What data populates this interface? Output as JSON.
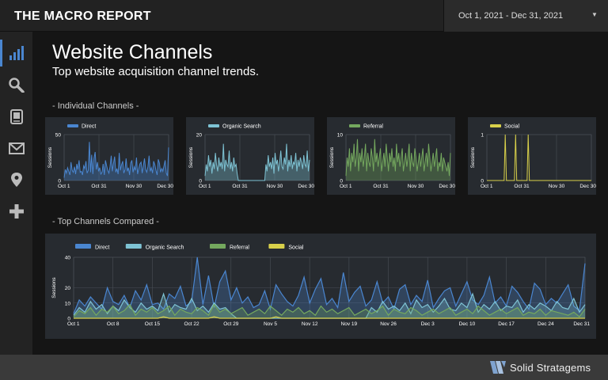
{
  "header": {
    "title": "THE MACRO REPORT"
  },
  "date_range": {
    "label": "Oct 1, 2021 - Dec 31, 2021",
    "caret": "▼"
  },
  "sidebar": {
    "items": [
      {
        "icon": "bar-chart-icon",
        "active": true
      },
      {
        "icon": "search-icon",
        "active": false
      },
      {
        "icon": "document-icon",
        "active": false
      },
      {
        "icon": "mail-icon",
        "active": false
      },
      {
        "icon": "location-pin-icon",
        "active": false
      },
      {
        "icon": "plus-icon",
        "active": false
      }
    ]
  },
  "page": {
    "title": "Website Channels",
    "subtitle": "Top website acquisition channel trends.",
    "section_individual": "- Individual Channels -",
    "section_compared": "- Top Channels Compared -"
  },
  "colors": {
    "direct": "#4a86d0",
    "organic_search": "#7ec3d4",
    "referral": "#74a85e",
    "social": "#d8d04a",
    "card_bg": "#272b30",
    "grid": "#4a4f56"
  },
  "chart_data": [
    {
      "type": "area",
      "series": [
        {
          "name": "Direct",
          "values": [
            3,
            12,
            8,
            14,
            10,
            6,
            20,
            11,
            9,
            15,
            7,
            18,
            12,
            22,
            9,
            10,
            6,
            16,
            13,
            21,
            8,
            11,
            42,
            9,
            28,
            7,
            24,
            31,
            12,
            20,
            10,
            14,
            7,
            9,
            18,
            6,
            22,
            16,
            11,
            8,
            15,
            27,
            10,
            19,
            26,
            9,
            13,
            7,
            30,
            11,
            17,
            21,
            8,
            12,
            24,
            10,
            14,
            6,
            19,
            22,
            9,
            15,
            11,
            25,
            7,
            13,
            18,
            20,
            8,
            16,
            24,
            12,
            9,
            15,
            27,
            10,
            14,
            8,
            21,
            17,
            11,
            6,
            23,
            19,
            9,
            13,
            10,
            16,
            22,
            8,
            5,
            36
          ]
        }
      ],
      "x_ticks": [
        "Oct 1",
        "Oct 31",
        "Nov 30",
        "Dec 30"
      ],
      "y_ticks": [
        "50",
        "0"
      ],
      "ylabel": "Sessions",
      "ylim": [
        0,
        50
      ]
    },
    {
      "type": "area",
      "series": [
        {
          "name": "Organic Search",
          "values": [
            2,
            7,
            4,
            11,
            6,
            9,
            3,
            8,
            5,
            12,
            7,
            4,
            10,
            6,
            8,
            5,
            16,
            4,
            9,
            7,
            6,
            13,
            5,
            8,
            4,
            10,
            6,
            7,
            3,
            0,
            0,
            0,
            0,
            0,
            0,
            0,
            0,
            0,
            0,
            0,
            0,
            0,
            0,
            0,
            0,
            0,
            0,
            0,
            0,
            0,
            0,
            0,
            0,
            7,
            4,
            11,
            6,
            8,
            5,
            10,
            3,
            12,
            7,
            9,
            4,
            8,
            13,
            6,
            5,
            10,
            7,
            16,
            4,
            9,
            6,
            11,
            5,
            8,
            7,
            12,
            4,
            9,
            6,
            10,
            8,
            5,
            11,
            7,
            6,
            13,
            4,
            9
          ]
        }
      ],
      "x_ticks": [
        "Oct 1",
        "Oct 31",
        "Nov 30",
        "Dec 30"
      ],
      "y_ticks": [
        "20",
        "0"
      ],
      "ylabel": "Sessions",
      "ylim": [
        0,
        20
      ]
    },
    {
      "type": "area",
      "series": [
        {
          "name": "Referral",
          "values": [
            1,
            5,
            3,
            7,
            2,
            6,
            4,
            8,
            3,
            5,
            9,
            2,
            6,
            4,
            7,
            3,
            5,
            8,
            2,
            6,
            4,
            3,
            7,
            5,
            2,
            9,
            4,
            6,
            3,
            5,
            7,
            2,
            4,
            6,
            3,
            8,
            5,
            2,
            6,
            4,
            7,
            3,
            5,
            2,
            8,
            4,
            6,
            3,
            5,
            7,
            2,
            4,
            6,
            3,
            5,
            8,
            2,
            6,
            4,
            3,
            7,
            5,
            2,
            4,
            6,
            3,
            5,
            7,
            2,
            4,
            6,
            3,
            8,
            5,
            2,
            4,
            6,
            3,
            5,
            7,
            2,
            4,
            3,
            6,
            2,
            5,
            4,
            3,
            2,
            4,
            1,
            6
          ]
        }
      ],
      "x_ticks": [
        "Oct 1",
        "Oct 31",
        "Nov 30",
        "Dec 30"
      ],
      "y_ticks": [
        "10",
        "0"
      ],
      "ylabel": "Sessions",
      "ylim": [
        0,
        10
      ]
    },
    {
      "type": "line",
      "series": [
        {
          "name": "Social",
          "values": [
            0,
            0,
            0,
            0,
            0,
            0,
            0,
            0,
            0,
            0,
            0,
            0,
            0,
            0,
            0,
            0,
            1,
            0,
            0,
            0,
            0,
            0,
            0,
            0,
            0,
            1,
            0,
            0,
            0,
            0,
            0,
            0,
            0,
            0,
            0,
            0,
            1,
            0,
            0,
            0,
            0,
            0,
            0,
            0,
            0,
            0,
            0,
            0,
            0,
            0,
            0,
            0,
            0,
            0,
            0,
            0,
            0,
            0,
            0,
            0,
            0,
            0,
            0,
            0,
            0,
            0,
            0,
            0,
            0,
            0,
            0,
            0,
            0,
            0,
            0,
            0,
            0,
            0,
            0,
            0,
            0,
            0,
            0,
            0,
            0,
            0,
            0,
            0,
            0,
            0,
            0,
            0
          ]
        }
      ],
      "x_ticks": [
        "Oct 1",
        "Oct 31",
        "Nov 30",
        "Dec 30"
      ],
      "y_ticks": [
        "1",
        "0"
      ],
      "ylabel": "Sessions",
      "ylim": [
        0,
        1
      ]
    },
    {
      "type": "area",
      "series": [
        {
          "name": "Direct",
          "values": [
            3,
            12,
            8,
            14,
            10,
            6,
            20,
            11,
            9,
            15,
            7,
            18,
            12,
            22,
            9,
            10,
            6,
            16,
            13,
            21,
            8,
            11,
            42,
            9,
            28,
            7,
            24,
            31,
            12,
            20,
            10,
            14,
            7,
            9,
            18,
            6,
            22,
            16,
            11,
            8,
            15,
            27,
            10,
            19,
            26,
            9,
            13,
            7,
            30,
            11,
            17,
            21,
            8,
            12,
            24,
            10,
            14,
            6,
            19,
            22,
            9,
            15,
            11,
            25,
            7,
            13,
            18,
            20,
            8,
            16,
            24,
            12,
            9,
            15,
            27,
            10,
            14,
            8,
            21,
            17,
            11,
            6,
            23,
            19,
            9,
            13,
            10,
            16,
            22,
            8,
            5,
            36
          ]
        },
        {
          "name": "Organic Search",
          "values": [
            2,
            7,
            4,
            11,
            6,
            9,
            3,
            8,
            5,
            12,
            7,
            4,
            10,
            6,
            8,
            5,
            16,
            4,
            9,
            7,
            6,
            13,
            5,
            8,
            4,
            10,
            6,
            7,
            3,
            0,
            0,
            0,
            0,
            0,
            0,
            0,
            0,
            0,
            0,
            0,
            0,
            0,
            0,
            0,
            0,
            0,
            0,
            0,
            0,
            0,
            0,
            0,
            0,
            7,
            4,
            11,
            6,
            8,
            5,
            10,
            3,
            12,
            7,
            9,
            4,
            8,
            13,
            6,
            5,
            10,
            7,
            16,
            4,
            9,
            6,
            11,
            5,
            8,
            7,
            12,
            4,
            9,
            6,
            10,
            8,
            5,
            11,
            7,
            6,
            13,
            4,
            9
          ]
        },
        {
          "name": "Referral",
          "values": [
            1,
            5,
            3,
            7,
            2,
            6,
            4,
            8,
            3,
            5,
            9,
            2,
            6,
            4,
            7,
            3,
            5,
            8,
            2,
            6,
            4,
            3,
            7,
            5,
            2,
            9,
            4,
            6,
            3,
            5,
            7,
            2,
            4,
            6,
            3,
            8,
            5,
            2,
            6,
            4,
            7,
            3,
            5,
            2,
            8,
            4,
            6,
            3,
            5,
            7,
            2,
            4,
            6,
            3,
            5,
            8,
            2,
            6,
            4,
            3,
            7,
            5,
            2,
            4,
            6,
            3,
            5,
            7,
            2,
            4,
            6,
            3,
            8,
            5,
            2,
            4,
            6,
            3,
            5,
            7,
            2,
            4,
            3,
            6,
            2,
            5,
            4,
            3,
            2,
            4,
            1,
            6
          ]
        },
        {
          "name": "Social",
          "values": [
            0,
            0,
            0,
            0,
            0,
            0,
            0,
            0,
            0,
            0,
            0,
            0,
            0,
            0,
            0,
            0,
            1,
            0,
            0,
            0,
            0,
            0,
            0,
            0,
            0,
            1,
            0,
            0,
            0,
            0,
            0,
            0,
            0,
            0,
            0,
            0,
            1,
            0,
            0,
            0,
            0,
            0,
            0,
            0,
            0,
            0,
            0,
            0,
            0,
            0,
            0,
            0,
            0,
            0,
            0,
            0,
            0,
            0,
            0,
            0,
            0,
            0,
            0,
            0,
            0,
            0,
            0,
            0,
            0,
            0,
            0,
            0,
            0,
            0,
            0,
            0,
            0,
            0,
            0,
            0,
            0,
            0,
            0,
            0,
            0,
            0,
            0,
            0,
            0,
            0,
            0,
            0
          ]
        }
      ],
      "x_ticks": [
        "Oct 1",
        "Oct 8",
        "Oct 15",
        "Oct 22",
        "Oct 29",
        "Nov 5",
        "Nov 12",
        "Nov 19",
        "Nov 26",
        "Dec 3",
        "Dec 10",
        "Dec 17",
        "Dec 24",
        "Dec 31"
      ],
      "y_ticks": [
        "40",
        "20",
        "10",
        "0"
      ],
      "ylabel": "Sessions",
      "ylim": [
        0,
        40
      ],
      "legend": "top-left"
    }
  ],
  "footer": {
    "brand": "Solid Stratagems"
  }
}
